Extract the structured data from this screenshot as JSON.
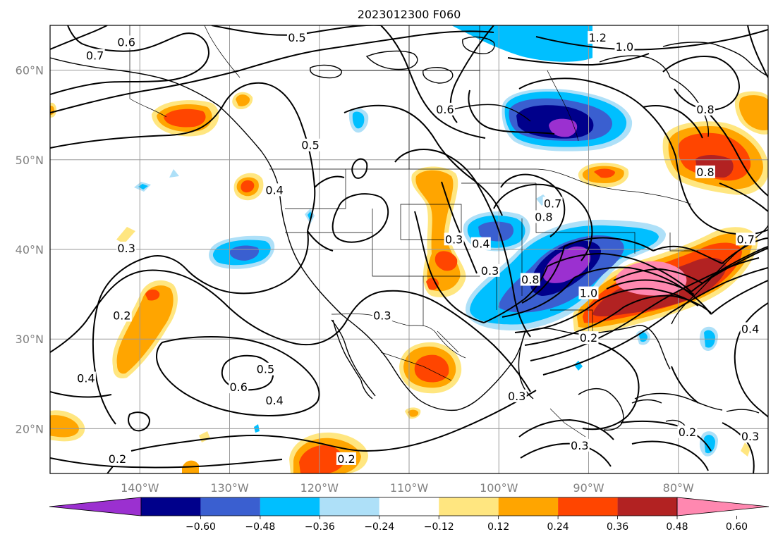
{
  "title": "2023012300 F060",
  "map": {
    "lon_ticks": [
      {
        "value": -140,
        "label": "140°W"
      },
      {
        "value": -130,
        "label": "130°W"
      },
      {
        "value": -120,
        "label": "120°W"
      },
      {
        "value": -110,
        "label": "110°W"
      },
      {
        "value": -100,
        "label": "100°W"
      },
      {
        "value": -90,
        "label": "90°W"
      },
      {
        "value": -80,
        "label": "80°W"
      }
    ],
    "lat_ticks": [
      {
        "value": 20,
        "label": "20°N"
      },
      {
        "value": 30,
        "label": "30°N"
      },
      {
        "value": 40,
        "label": "40°N"
      },
      {
        "value": 50,
        "label": "50°N"
      },
      {
        "value": 60,
        "label": "60°N"
      }
    ],
    "lon_range": [
      -150,
      -70
    ],
    "lat_range": [
      15,
      65
    ],
    "grid": true
  },
  "colorbar": {
    "ticks": [
      "−0.60",
      "−0.48",
      "−0.36",
      "−0.24",
      "−0.12",
      "0.12",
      "0.24",
      "0.36",
      "0.48",
      "0.60"
    ],
    "colors": [
      "#9b30d0",
      "#00008b",
      "#3a5fd0",
      "#00bfff",
      "#aee0f8",
      "#ffffff",
      "#ffe680",
      "#ffa500",
      "#ff4500",
      "#b22222",
      "#ff88b0"
    ],
    "extend": "both"
  },
  "contour_labels": [
    {
      "text": "0.6",
      "lon": -141.5,
      "lat": 63.0
    },
    {
      "text": "0.5",
      "lon": -122.5,
      "lat": 63.5
    },
    {
      "text": "0.7",
      "lon": -145.0,
      "lat": 61.5
    },
    {
      "text": "0.6",
      "lon": -106.0,
      "lat": 55.5
    },
    {
      "text": "0.5",
      "lon": -121.0,
      "lat": 51.5
    },
    {
      "text": "0.4",
      "lon": -125.0,
      "lat": 46.5
    },
    {
      "text": "0.4",
      "lon": -102.0,
      "lat": 40.5
    },
    {
      "text": "0.3",
      "lon": -105.0,
      "lat": 41.0
    },
    {
      "text": "0.3",
      "lon": -101.0,
      "lat": 37.5
    },
    {
      "text": "0.3",
      "lon": -141.5,
      "lat": 40.0
    },
    {
      "text": "0.2",
      "lon": -142.0,
      "lat": 32.5
    },
    {
      "text": "0.3",
      "lon": -113.0,
      "lat": 32.5
    },
    {
      "text": "0.5",
      "lon": -126.0,
      "lat": 26.5
    },
    {
      "text": "0.6",
      "lon": -129.0,
      "lat": 24.5
    },
    {
      "text": "0.4",
      "lon": -125.0,
      "lat": 23.0
    },
    {
      "text": "0.4",
      "lon": -146.0,
      "lat": 25.5
    },
    {
      "text": "0.2",
      "lon": -142.5,
      "lat": 16.5
    },
    {
      "text": "0.2",
      "lon": -117.0,
      "lat": 16.5
    },
    {
      "text": "0.3",
      "lon": -98.0,
      "lat": 23.5
    },
    {
      "text": "1.2",
      "lon": -89.0,
      "lat": 63.5
    },
    {
      "text": "1.0",
      "lon": -86.0,
      "lat": 62.5
    },
    {
      "text": "0.8",
      "lon": -77.0,
      "lat": 55.5
    },
    {
      "text": "0.8",
      "lon": -77.0,
      "lat": 48.5
    },
    {
      "text": "0.8",
      "lon": -95.0,
      "lat": 43.5
    },
    {
      "text": "0.7",
      "lon": -94.0,
      "lat": 45.0
    },
    {
      "text": "0.8",
      "lon": -96.5,
      "lat": 36.5
    },
    {
      "text": "1.0",
      "lon": -90.0,
      "lat": 35.0
    },
    {
      "text": "0.2",
      "lon": -90.0,
      "lat": 30.0
    },
    {
      "text": "0.7",
      "lon": -72.5,
      "lat": 41.0
    },
    {
      "text": "0.4",
      "lon": -72.0,
      "lat": 31.0
    },
    {
      "text": "0.2",
      "lon": -79.0,
      "lat": 19.5
    },
    {
      "text": "0.3",
      "lon": -91.0,
      "lat": 18.0
    },
    {
      "text": "0.3",
      "lon": -72.0,
      "lat": 19.0
    }
  ]
}
